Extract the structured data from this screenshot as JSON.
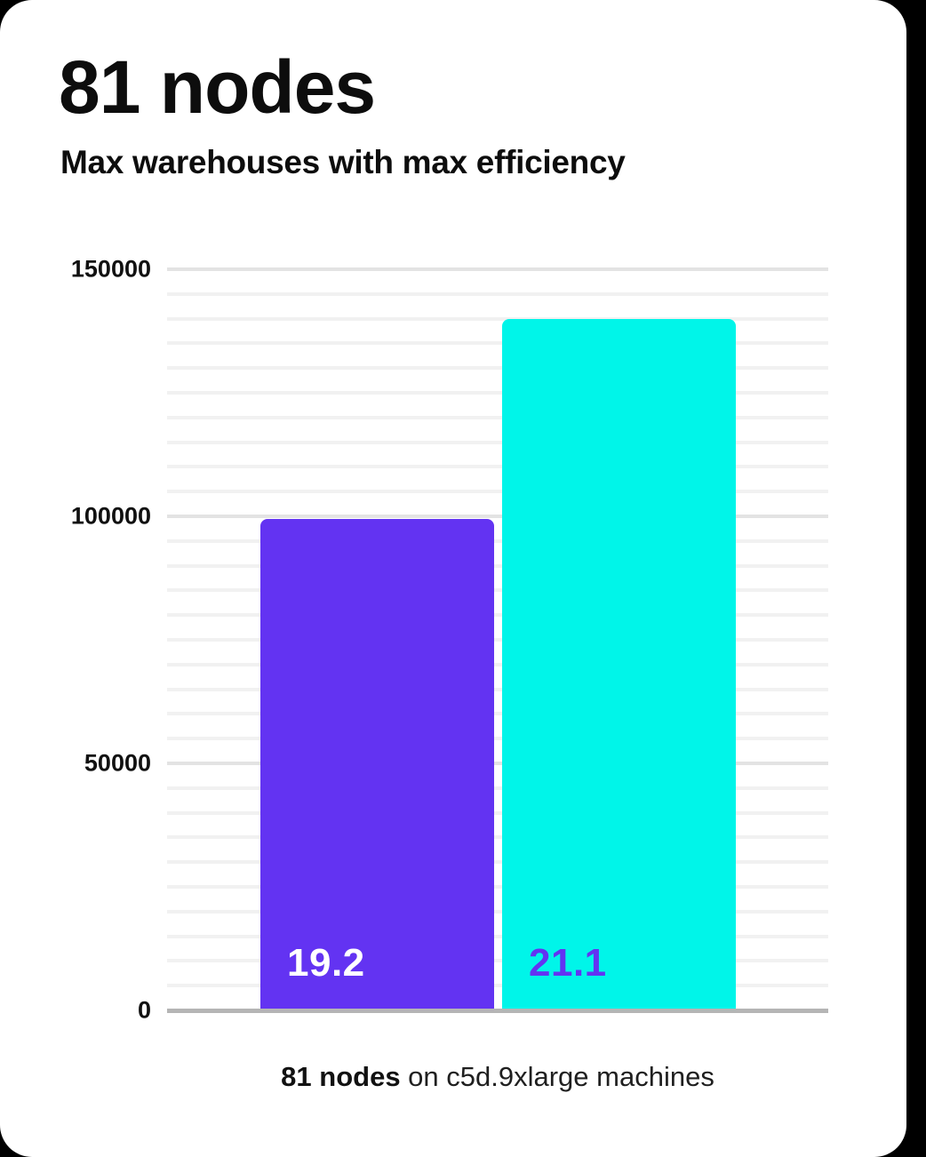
{
  "page": {
    "background_color": "#000000",
    "card_color": "#ffffff"
  },
  "header": {
    "title": "81 nodes",
    "subtitle": "Max warehouses with max efficiency"
  },
  "caption": {
    "bold_text": "81 nodes",
    "regular_text": " on c5d.9xlarge machines"
  },
  "colors": {
    "bar_purple": "#6333F2",
    "bar_cyan": "#00F5E9",
    "label_on_purple": "#FFFFFF",
    "label_on_cyan": "#6333F2",
    "minor_gridline": "#f1f1f1",
    "major_gridline": "#e3e3e3",
    "axis_line": "#b5b5b5"
  },
  "chart_data": {
    "type": "bar",
    "title": "81 nodes",
    "subtitle": "Max warehouses with max efficiency",
    "caption": "81 nodes on c5d.9xlarge machines",
    "categories": [
      "19.2",
      "21.1"
    ],
    "series": [
      {
        "name": "bar-1",
        "value": 99500,
        "bar_label": "19.2",
        "bar_color": "#6333F2",
        "label_color": "#FFFFFF"
      },
      {
        "name": "bar-2",
        "value": 140000,
        "bar_label": "21.1",
        "bar_color": "#00F5E9",
        "label_color": "#6333F2"
      }
    ],
    "ylim": [
      0,
      150000
    ],
    "y_ticks": [
      0,
      50000,
      100000,
      150000
    ],
    "y_tick_labels": [
      "0",
      "50000",
      "100000",
      "150000"
    ],
    "minor_gridline_step": 5000,
    "major_gridline_step": 50000,
    "grid": true,
    "legend": false
  }
}
